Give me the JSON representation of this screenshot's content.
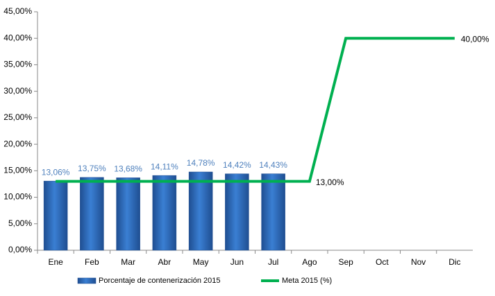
{
  "chart_data": {
    "type": "bar",
    "categories": [
      "Ene",
      "Feb",
      "Mar",
      "Abr",
      "May",
      "Jun",
      "Jul",
      "Ago",
      "Sep",
      "Oct",
      "Nov",
      "Dic"
    ],
    "series": [
      {
        "name": "Porcentaje de contenerización 2015",
        "type": "bar",
        "color": "#2e6cbf",
        "values": [
          13.06,
          13.75,
          13.68,
          14.11,
          14.78,
          14.42,
          14.43,
          null,
          null,
          null,
          null,
          null
        ],
        "value_labels": [
          "13,06%",
          "13,75%",
          "13,68%",
          "14,11%",
          "14,78%",
          "14,42%",
          "14,43%",
          null,
          null,
          null,
          null,
          null
        ]
      },
      {
        "name": "Meta 2015 (%)",
        "type": "line",
        "color": "#00b050",
        "values": [
          13,
          13,
          13,
          13,
          13,
          13,
          13,
          13,
          40,
          40,
          40,
          40
        ],
        "value_labels": [
          null,
          null,
          null,
          null,
          null,
          null,
          null,
          "13,00%",
          null,
          null,
          null,
          "40,00%"
        ]
      }
    ],
    "ylim": [
      0,
      45
    ],
    "yticks": [
      {
        "value": 0,
        "label": "0,00%"
      },
      {
        "value": 5,
        "label": "5,00%"
      },
      {
        "value": 10,
        "label": "10,00%"
      },
      {
        "value": 15,
        "label": "15,00%"
      },
      {
        "value": 20,
        "label": "20,00%"
      },
      {
        "value": 25,
        "label": "25,00%"
      },
      {
        "value": 30,
        "label": "30,00%"
      },
      {
        "value": 35,
        "label": "35,00%"
      },
      {
        "value": 40,
        "label": "40,00%"
      },
      {
        "value": 45,
        "label": "45,00%"
      }
    ],
    "grid": false,
    "legend": "bottom"
  }
}
